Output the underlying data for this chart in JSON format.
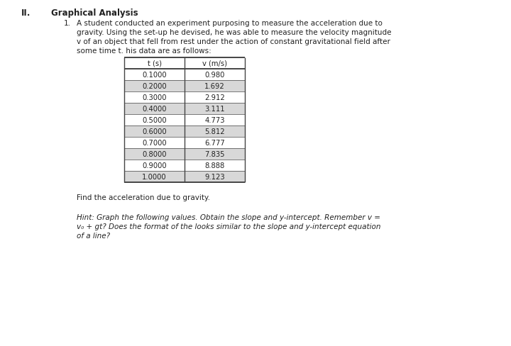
{
  "heading_roman": "II.",
  "heading_title": "Graphical Analysis",
  "item_number": "1.",
  "para_lines": [
    "A student conducted an experiment purposing to measure the acceleration due to",
    "gravity. Using the set-up he devised, he was able to measure the velocity magnitude",
    "v of an object that fell from rest under the action of constant gravitational field after",
    "some time t. his data are as follows:"
  ],
  "col1_header": "t (s)",
  "col2_header": "v (m/s)",
  "t_values": [
    "0.1000",
    "0.2000",
    "0.3000",
    "0.4000",
    "0.5000",
    "0.6000",
    "0.7000",
    "0.8000",
    "0.9000",
    "1.0000"
  ],
  "v_values": [
    "0.980",
    "1.692",
    "2.912",
    "3.111",
    "4.773",
    "5.812",
    "6.777",
    "7.835",
    "8.888",
    "9.123"
  ],
  "find_text": "Find the acceleration due to gravity.",
  "hint_lines": [
    "Hint: Graph the following values. Obtain the slope and y-intercept. Remember v =",
    "v₀ + gt? Does the format of the looks similar to the slope and y-intercept equation",
    "of a line?"
  ],
  "bg_color": "#ffffff",
  "text_color": "#222222",
  "table_border_color": "#444444",
  "table_alt_color": "#d8d8d8",
  "font_size_heading": 8.5,
  "font_size_body": 7.5,
  "font_size_table": 7.2,
  "fig_w": 7.2,
  "fig_h": 4.89,
  "dpi": 100
}
